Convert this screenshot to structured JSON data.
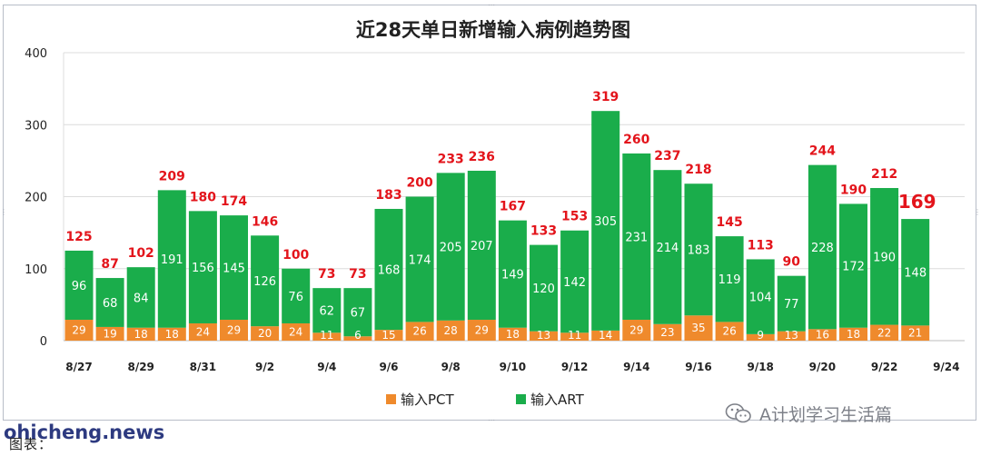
{
  "caption": "图表：",
  "watermark": {
    "site": "ohicheng.news",
    "account": "A计划学习生活篇",
    "icon": "wechat-icon"
  },
  "colors": {
    "pct": "#ef8a2c",
    "art": "#1aad4b",
    "total_label": "#e3141b",
    "inner_label": "#ffffff",
    "grid": "#dcdcdc"
  },
  "chart_data": {
    "type": "bar",
    "stacked": true,
    "title": "近28天单日新增输入病例趋势图",
    "ylim": [
      0,
      400
    ],
    "yticks": [
      0,
      100,
      200,
      300,
      400
    ],
    "grid": true,
    "legend_position": "bottom",
    "categories": [
      "8/27",
      "8/28",
      "8/29",
      "8/30",
      "8/31",
      "9/1",
      "9/2",
      "9/3",
      "9/4",
      "9/5",
      "9/6",
      "9/7",
      "9/8",
      "9/9",
      "9/10",
      "9/11",
      "9/12",
      "9/13",
      "9/14",
      "9/15",
      "9/16",
      "9/17",
      "9/18",
      "9/19",
      "9/20",
      "9/21",
      "9/22",
      "9/23"
    ],
    "xtick_labels": [
      "8/27",
      "8/29",
      "8/31",
      "9/2",
      "9/4",
      "9/6",
      "9/8",
      "9/10",
      "9/12",
      "9/14",
      "9/16",
      "9/18",
      "9/20",
      "9/22",
      "9/24"
    ],
    "series": [
      {
        "name": "输入PCT",
        "values": [
          29,
          19,
          18,
          18,
          24,
          29,
          20,
          24,
          11,
          6,
          15,
          26,
          28,
          29,
          18,
          13,
          11,
          14,
          29,
          23,
          35,
          26,
          9,
          13,
          16,
          18,
          22,
          21
        ]
      },
      {
        "name": "输入ART",
        "values": [
          96,
          68,
          84,
          191,
          156,
          145,
          126,
          76,
          62,
          67,
          168,
          174,
          205,
          207,
          149,
          120,
          142,
          305,
          231,
          214,
          183,
          119,
          104,
          77,
          228,
          172,
          190,
          148
        ]
      }
    ],
    "totals": [
      125,
      87,
      102,
      209,
      180,
      174,
      146,
      100,
      73,
      73,
      183,
      200,
      233,
      236,
      167,
      133,
      153,
      319,
      260,
      237,
      218,
      145,
      113,
      90,
      244,
      190,
      212,
      169
    ],
    "highlighted_total_index": 27
  }
}
